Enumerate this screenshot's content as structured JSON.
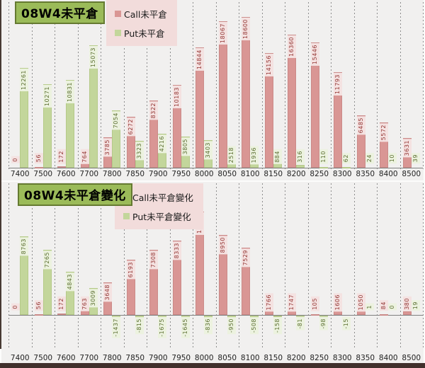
{
  "colors": {
    "call_bar": "#d99694",
    "put_bar": "#c3d69b",
    "call_label_text": "#943634",
    "put_label_text": "#5a6e2f",
    "title_box_bg": "#9bbb59",
    "legend_bg": "#f2dcdb",
    "plot_bg": "#f1f0ef"
  },
  "chart_data": [
    {
      "type": "bar",
      "title": "08W4未平倉",
      "legend_position": "top-inset",
      "grid": "vertical-dashed",
      "xlabel": "",
      "ylabel": "",
      "ylim": [
        0,
        20400
      ],
      "categories": [
        "7400",
        "7500",
        "7600",
        "7700",
        "7800",
        "7850",
        "7900",
        "7950",
        "8000",
        "8050",
        "8100",
        "8150",
        "8200",
        "8250",
        "8300",
        "8350",
        "8400",
        "8500"
      ],
      "series": [
        {
          "name": "Call未平倉",
          "color": "#d99694",
          "values": [
            0,
            56,
            172,
            764,
            3785,
            6272,
            8322,
            10183,
            14844,
            18067,
            18600,
            14156,
            16360,
            15446,
            11793,
            6485,
            5572,
            3631
          ]
        },
        {
          "name": "Put未平倉",
          "color": "#c3d69b",
          "values": [
            12261,
            10271,
            10831,
            15073,
            7054,
            3323,
            4216,
            3805,
            3403,
            2518,
            1936,
            884,
            316,
            110,
            62,
            24,
            10,
            39
          ]
        }
      ]
    },
    {
      "type": "bar",
      "title": "08W4未平倉變化",
      "legend_position": "top-inset",
      "grid": "vertical-dashed",
      "xlabel": "",
      "ylabel": "",
      "ylim": [
        -2050,
        14700
      ],
      "categories": [
        "7400",
        "7500",
        "7600",
        "7700",
        "7800",
        "7850",
        "7900",
        "7950",
        "8000",
        "8050",
        "8100",
        "8150",
        "8200",
        "8250",
        "8300",
        "8350",
        "8400",
        "8500"
      ],
      "series": [
        {
          "name": "Call未平倉變化",
          "color": "#d99694",
          "values": [
            0,
            56,
            172,
            763,
            3648,
            6193,
            7308,
            8333,
            11528,
            8950,
            7529,
            1766,
            1747,
            105,
            1606,
            1050,
            84,
            380
          ]
        },
        {
          "name": "Put未平倉變化",
          "color": "#c3d69b",
          "values": [
            8763,
            7265,
            4843,
            3009,
            -1437,
            -815,
            -1675,
            -1645,
            -836,
            -950,
            -508,
            -158,
            -81,
            -98,
            -15,
            1,
            0,
            19
          ]
        }
      ]
    }
  ]
}
